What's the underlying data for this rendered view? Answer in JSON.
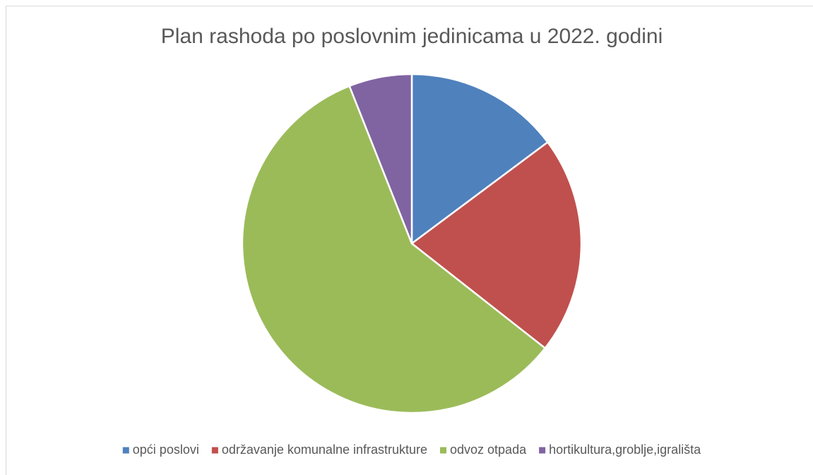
{
  "chart_data": {
    "type": "pie",
    "title": "Plan rashoda po poslovnim jedinicama u 2022. godini",
    "categories": [
      "opći poslovi",
      "održavanje komunalne infrastrukture",
      "odvoz otpada",
      "hortikultura,groblje,igrališta"
    ],
    "values": [
      14.8,
      20.8,
      58.4,
      6.0
    ],
    "colors": [
      "#4f81bd",
      "#c0504d",
      "#9bbb59",
      "#8064a2"
    ],
    "legend": "bottom"
  }
}
